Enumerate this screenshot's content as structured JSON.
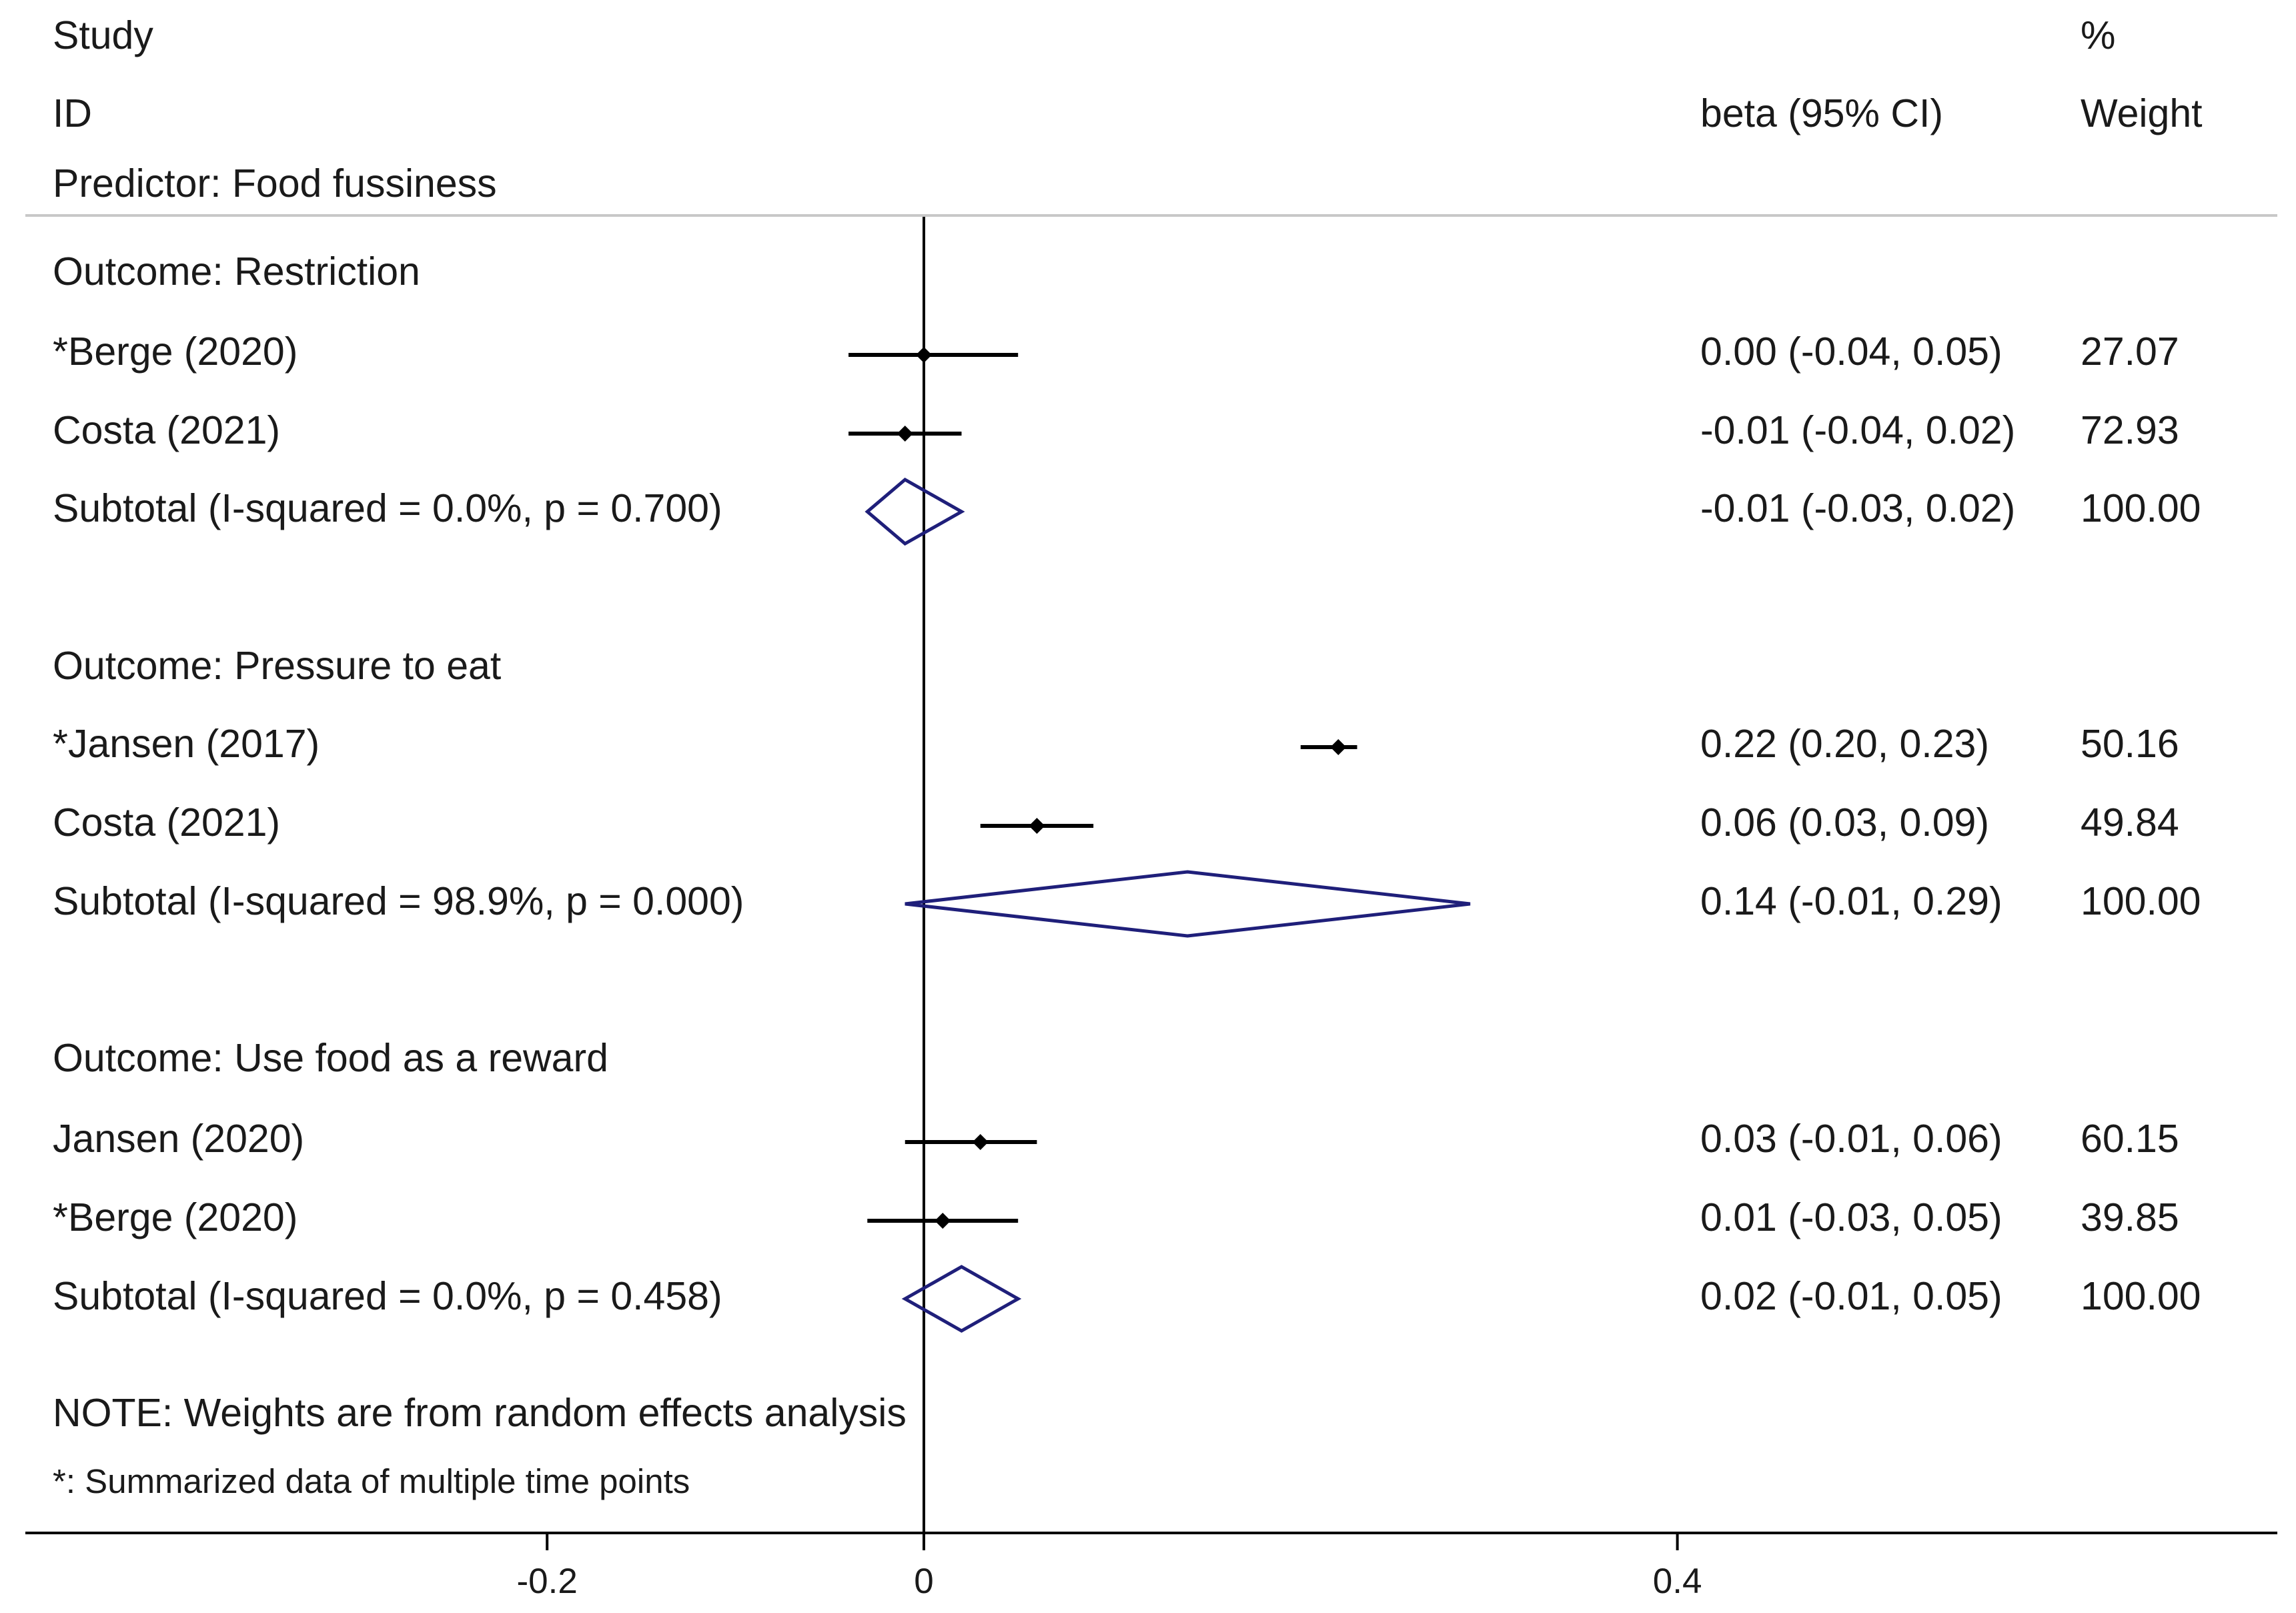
{
  "chart_data": {
    "type": "forest",
    "header": {
      "study_line1": "Study",
      "study_line2": "ID",
      "effect_label": "beta (95% CI)",
      "weight_line1": "%",
      "weight_line2": "Weight"
    },
    "predictor": "Predictor: Food fussiness",
    "groups": [
      {
        "title": "Outcome: Restriction",
        "studies": [
          {
            "label": "*Berge (2020)",
            "est": 0.0,
            "lo": -0.04,
            "hi": 0.05,
            "ci_text": "0.00 (-0.04, 0.05)",
            "weight": "27.07"
          },
          {
            "label": "Costa (2021)",
            "est": -0.01,
            "lo": -0.04,
            "hi": 0.02,
            "ci_text": "-0.01 (-0.04, 0.02)",
            "weight": "72.93"
          }
        ],
        "subtotal": {
          "label": "Subtotal  (I-squared = 0.0%, p = 0.700)",
          "est": -0.01,
          "lo": -0.03,
          "hi": 0.02,
          "ci_text": "-0.01 (-0.03, 0.02)",
          "weight": "100.00"
        }
      },
      {
        "title": "Outcome: Pressure to eat",
        "studies": [
          {
            "label": "*Jansen (2017)",
            "est": 0.22,
            "lo": 0.2,
            "hi": 0.23,
            "ci_text": "0.22 (0.20, 0.23)",
            "weight": "50.16"
          },
          {
            "label": "Costa (2021)",
            "est": 0.06,
            "lo": 0.03,
            "hi": 0.09,
            "ci_text": "0.06 (0.03, 0.09)",
            "weight": "49.84"
          }
        ],
        "subtotal": {
          "label": "Subtotal  (I-squared = 98.9%, p = 0.000)",
          "est": 0.14,
          "lo": -0.01,
          "hi": 0.29,
          "ci_text": "0.14 (-0.01, 0.29)",
          "weight": "100.00"
        }
      },
      {
        "title": "Outcome: Use food as a reward",
        "studies": [
          {
            "label": "Jansen (2020)",
            "est": 0.03,
            "lo": -0.01,
            "hi": 0.06,
            "ci_text": "0.03 (-0.01, 0.06)",
            "weight": "60.15"
          },
          {
            "label": "*Berge (2020)",
            "est": 0.01,
            "lo": -0.03,
            "hi": 0.05,
            "ci_text": "0.01 (-0.03, 0.05)",
            "weight": "39.85"
          }
        ],
        "subtotal": {
          "label": "Subtotal  (I-squared = 0.0%, p = 0.458)",
          "est": 0.02,
          "lo": -0.01,
          "hi": 0.05,
          "ci_text": "0.02 (-0.01, 0.05)",
          "weight": "100.00"
        }
      }
    ],
    "note": "NOTE: Weights are from random effects analysis",
    "footnote": "*: Summarized data of multiple time points",
    "x_ticks": [
      {
        "value": -0.2,
        "label": "-0.2"
      },
      {
        "value": 0,
        "label": "0"
      },
      {
        "value": 0.4,
        "label": "0.4"
      }
    ],
    "reference_line": 0,
    "colors": {
      "text": "#1a1a1a",
      "ci": "#000000",
      "diamond": "#1f1f7a"
    }
  }
}
